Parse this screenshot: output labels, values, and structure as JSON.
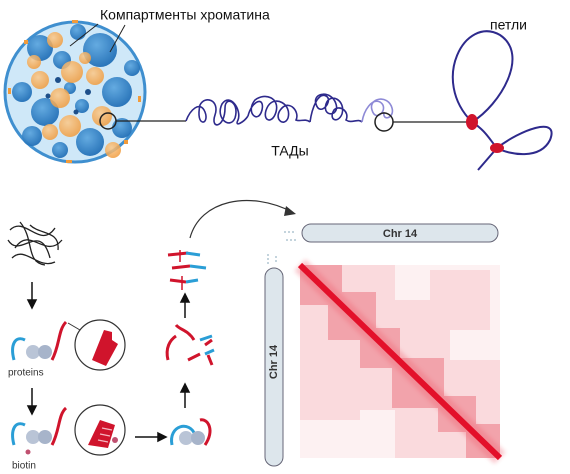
{
  "top": {
    "compartments_label": "Компартменты хроматина",
    "tads_label": "ТАДы",
    "loops_label": "петли"
  },
  "hic_steps": {
    "proteins_label": "proteins",
    "biotin_label": "biotin"
  },
  "hic_map": {
    "top_axis_label": "Chr 14",
    "left_axis_label": "Chr 14"
  }
}
